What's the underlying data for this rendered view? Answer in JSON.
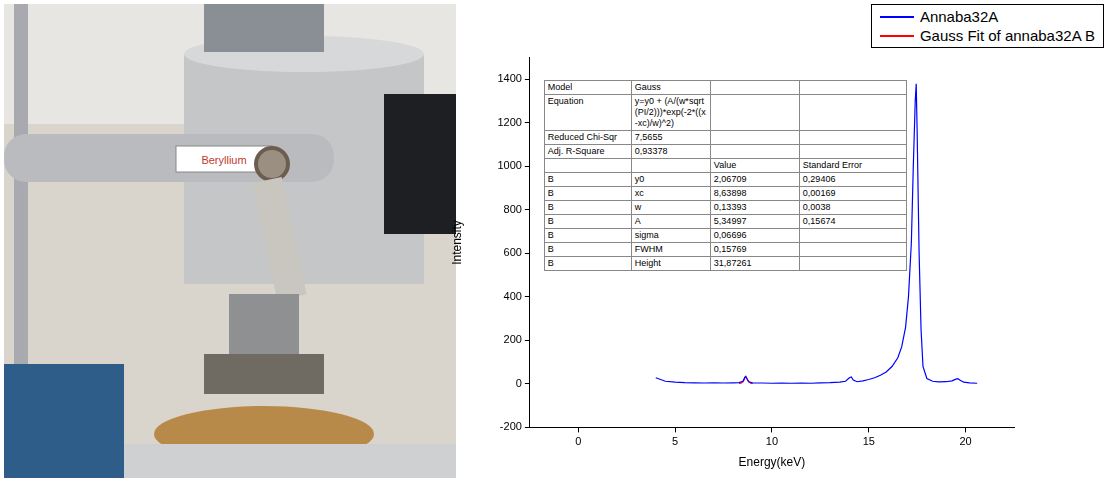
{
  "chart_data": {
    "type": "line",
    "x_label": "Energy(keV)",
    "y_label": "Intensity",
    "xlim": [
      -2.5,
      22.5
    ],
    "xticks": [
      0,
      5,
      10,
      15,
      20
    ],
    "ylim": [
      -200,
      1500
    ],
    "yticks": [
      -200,
      0,
      200,
      400,
      600,
      800,
      1000,
      1200,
      1400
    ],
    "grid": false,
    "legend": "upper right",
    "series": [
      {
        "name": "Annaba32A",
        "color": "#0000ff",
        "x": [
          4.0,
          4.5,
          5,
          5.5,
          6,
          6.5,
          7,
          7.5,
          8,
          8.3,
          8.5,
          8.6,
          8.65,
          8.7,
          8.8,
          9,
          9.5,
          10,
          10.5,
          11,
          11.5,
          12,
          12.5,
          13,
          13.5,
          13.8,
          14.0,
          14.1,
          14.2,
          14.4,
          14.7,
          15,
          15.3,
          15.6,
          15.9,
          16.2,
          16.5,
          16.7,
          16.9,
          17.05,
          17.2,
          17.3,
          17.4,
          17.45,
          17.5,
          17.6,
          17.7,
          17.8,
          18.0,
          18.3,
          18.6,
          19.0,
          19.3,
          19.5,
          19.6,
          19.7,
          19.9,
          20.2,
          20.6
        ],
        "values": [
          28,
          12,
          8,
          6,
          5,
          4,
          5,
          4,
          5,
          6,
          12,
          30,
          34,
          25,
          10,
          5,
          4,
          3,
          4,
          3,
          4,
          3,
          5,
          6,
          8,
          12,
          28,
          32,
          18,
          10,
          14,
          20,
          28,
          40,
          55,
          80,
          120,
          170,
          260,
          400,
          650,
          1000,
          1300,
          1380,
          1150,
          600,
          250,
          80,
          25,
          12,
          9,
          10,
          14,
          22,
          24,
          18,
          8,
          5,
          3
        ]
      },
      {
        "name": "Gauss Fit of annaba32A B",
        "color": "#ff0000",
        "x": [
          8.3,
          8.4,
          8.5,
          8.55,
          8.6,
          8.64,
          8.7,
          8.75,
          8.8,
          8.9,
          9.0
        ],
        "values": [
          2.1,
          3.0,
          9.0,
          15.5,
          29.0,
          33.9,
          27.0,
          18.0,
          10.0,
          3.0,
          2.1
        ]
      }
    ],
    "fit_table": {
      "rows": [
        {
          "label": "Model",
          "text": "Gauss"
        },
        {
          "label": "Equation",
          "text": "y=y0 + (A/(w*sqrt(PI/2)))*exp(-2*((x-xc)/w)^2)"
        },
        {
          "label": "Reduced Chi-Sqr",
          "text": "7,5655"
        },
        {
          "label": "Adj. R-Square",
          "text": "0,93378"
        }
      ],
      "columns": [
        "Value",
        "Standard Error"
      ],
      "parameters": [
        {
          "group": "B",
          "name": "y0",
          "value": "2,06709",
          "error": "0,29406"
        },
        {
          "group": "B",
          "name": "xc",
          "value": "8,63898",
          "error": "0,00169"
        },
        {
          "group": "B",
          "name": "w",
          "value": "0,13393",
          "error": "0,0038"
        },
        {
          "group": "B",
          "name": "A",
          "value": "5,34997",
          "error": "0,15674"
        },
        {
          "group": "B",
          "name": "sigma",
          "value": "0,06696"
        },
        {
          "group": "B",
          "name": "FWHM",
          "value": "0,15769"
        },
        {
          "group": "B",
          "name": "Height",
          "value": "31,87261"
        }
      ]
    }
  },
  "photo": {
    "label": "Beryllium"
  }
}
